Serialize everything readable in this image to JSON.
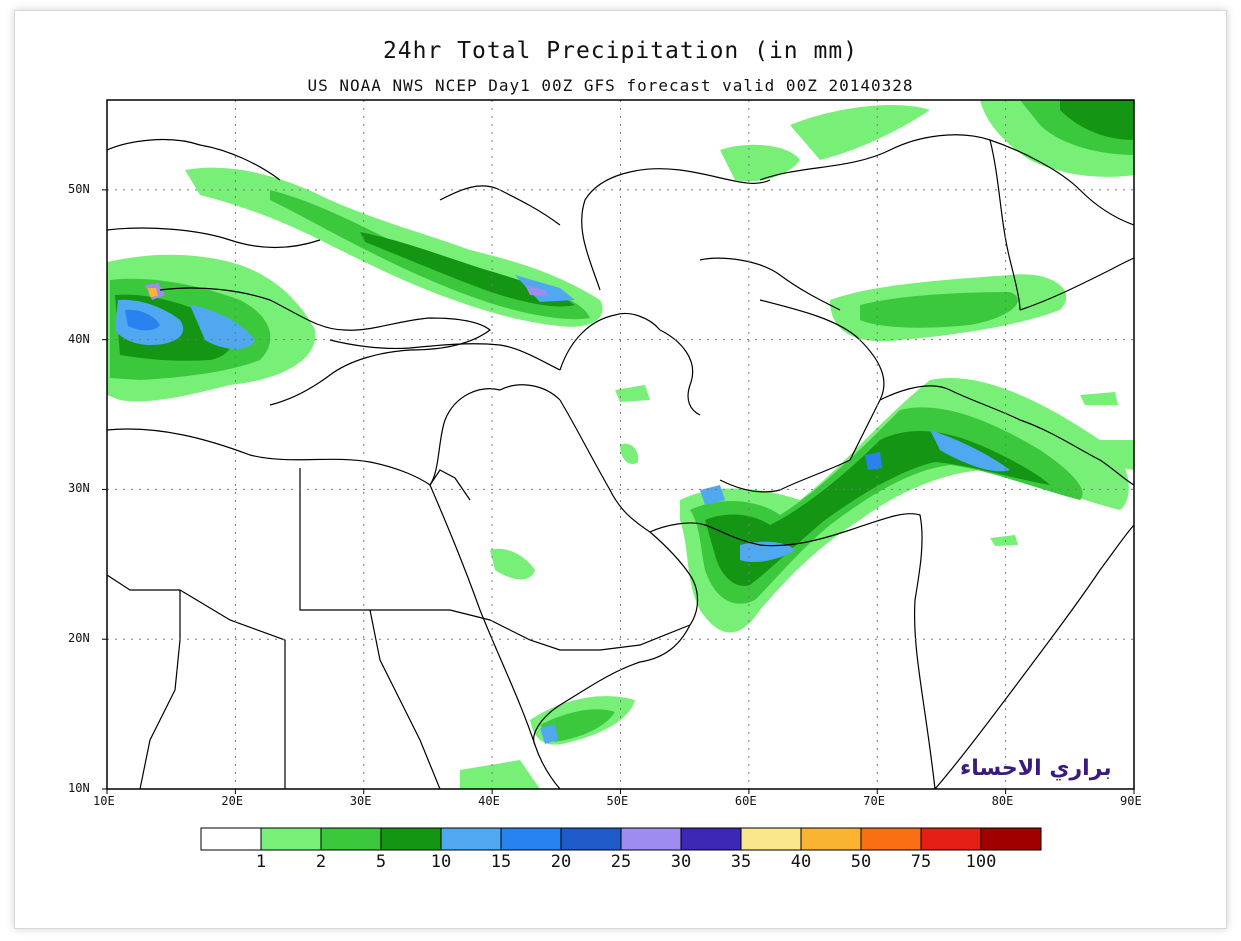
{
  "title": "24hr Total Precipitation (in mm)",
  "subtitle": "US NOAA NWS NCEP Day1 00Z GFS forecast valid 00Z 20140328",
  "watermark": "براري الاحساء",
  "map": {
    "lon_range": [
      10,
      90
    ],
    "lat_range": [
      10,
      56
    ],
    "lat_ticks": [
      {
        "value": 10,
        "label": "10N"
      },
      {
        "value": 20,
        "label": "20N"
      },
      {
        "value": 30,
        "label": "30N"
      },
      {
        "value": 40,
        "label": "40N"
      },
      {
        "value": 50,
        "label": "50N"
      }
    ],
    "lon_ticks": [
      {
        "value": 10,
        "label": "10E"
      },
      {
        "value": 20,
        "label": "20E"
      },
      {
        "value": 30,
        "label": "30E"
      },
      {
        "value": 40,
        "label": "40E"
      },
      {
        "value": 50,
        "label": "50E"
      },
      {
        "value": 60,
        "label": "60E"
      },
      {
        "value": 70,
        "label": "70E"
      },
      {
        "value": 80,
        "label": "80E"
      },
      {
        "value": 90,
        "label": "90E"
      }
    ],
    "grid": true
  },
  "colorbar": {
    "colors": [
      "#ffffff",
      "#78f078",
      "#3cc83c",
      "#149614",
      "#50a8f0",
      "#2882f0",
      "#1e5ac8",
      "#a08cf0",
      "#3c28b4",
      "#fae68c",
      "#fab432",
      "#fa6e14",
      "#e61e14",
      "#a00000"
    ],
    "labels": [
      "1",
      "2",
      "5",
      "10",
      "15",
      "20",
      "25",
      "30",
      "35",
      "40",
      "50",
      "75",
      "100"
    ]
  }
}
